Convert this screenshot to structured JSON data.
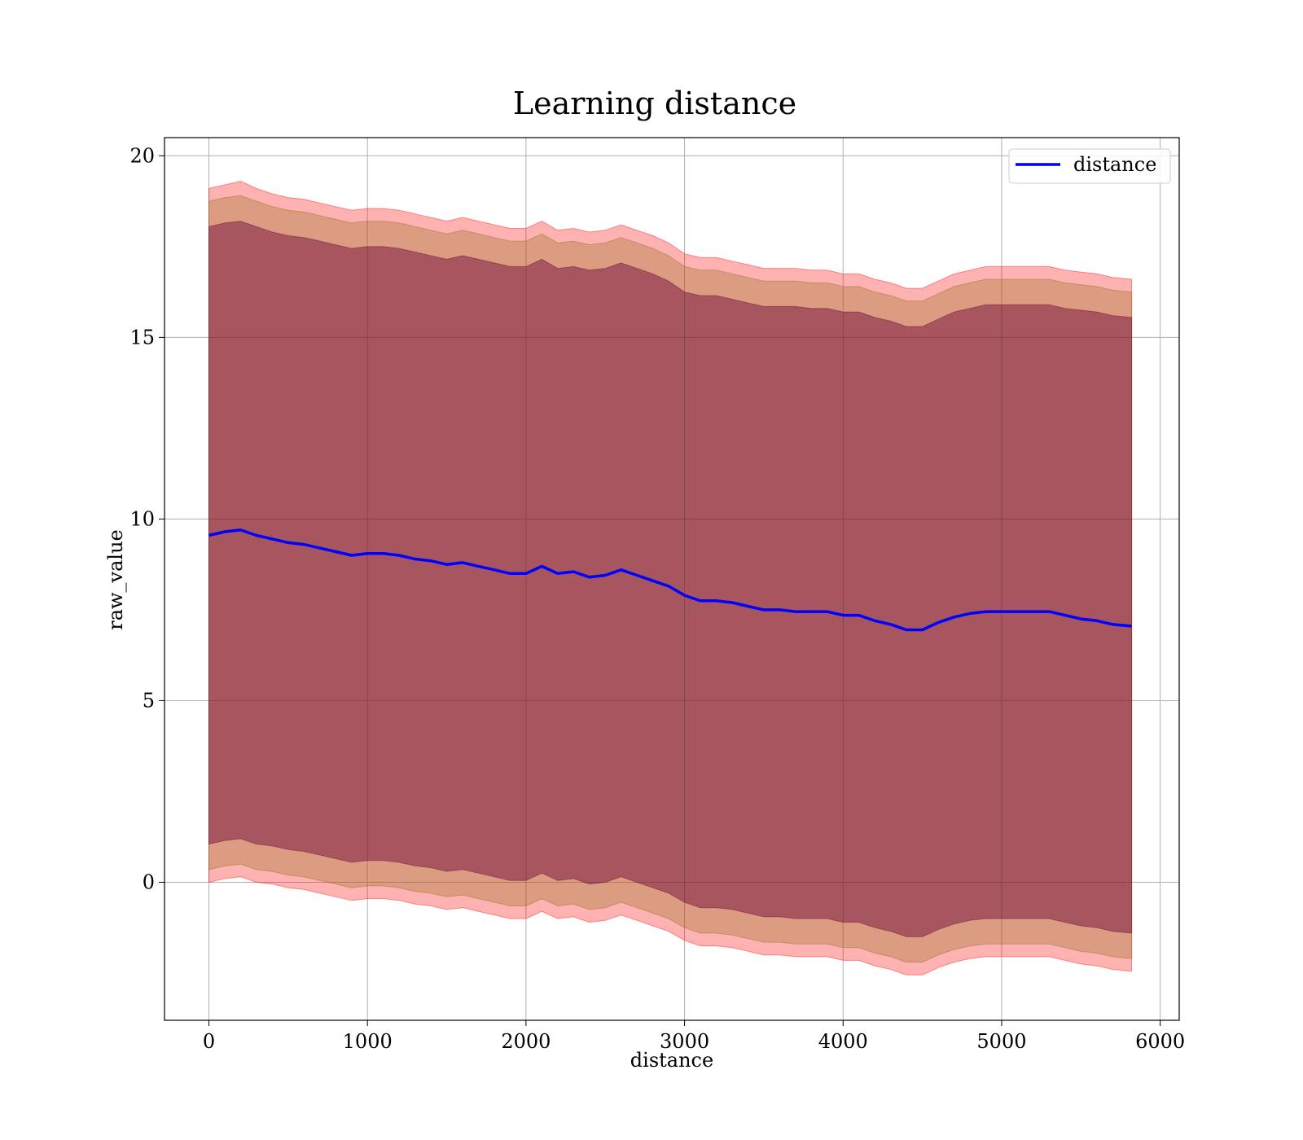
{
  "chart_data": {
    "type": "line",
    "title": "Learning distance",
    "xlabel": "distance",
    "ylabel": "raw_value",
    "xlim": [
      -280,
      6120
    ],
    "ylim": [
      -3.8,
      20.5
    ],
    "xticks": [
      0,
      1000,
      2000,
      3000,
      4000,
      5000,
      6000
    ],
    "yticks": [
      0,
      5,
      10,
      15,
      20
    ],
    "grid": true,
    "legend_position": "top-right",
    "x": [
      0,
      100,
      200,
      300,
      400,
      500,
      600,
      700,
      800,
      900,
      1000,
      1100,
      1200,
      1300,
      1400,
      1500,
      1600,
      1700,
      1800,
      1900,
      2000,
      2100,
      2200,
      2300,
      2400,
      2500,
      2600,
      2700,
      2800,
      2900,
      3000,
      3100,
      3200,
      3300,
      3400,
      3500,
      3600,
      3700,
      3800,
      3900,
      4000,
      4100,
      4200,
      4300,
      4400,
      4500,
      4600,
      4700,
      4800,
      4900,
      5000,
      5100,
      5200,
      5300,
      5400,
      5500,
      5600,
      5700,
      5820
    ],
    "series": [
      {
        "name": "distance",
        "color": "#0000ff",
        "values": [
          9.55,
          9.65,
          9.7,
          9.55,
          9.45,
          9.35,
          9.3,
          9.2,
          9.1,
          9.0,
          9.05,
          9.05,
          9.0,
          8.9,
          8.85,
          8.75,
          8.8,
          8.7,
          8.6,
          8.5,
          8.5,
          8.7,
          8.5,
          8.55,
          8.4,
          8.45,
          8.6,
          8.45,
          8.3,
          8.15,
          7.9,
          7.75,
          7.75,
          7.7,
          7.6,
          7.5,
          7.5,
          7.45,
          7.45,
          7.45,
          7.35,
          7.35,
          7.2,
          7.1,
          6.95,
          6.95,
          7.15,
          7.3,
          7.4,
          7.45,
          7.45,
          7.45,
          7.45,
          7.45,
          7.35,
          7.25,
          7.2,
          7.1,
          7.05
        ],
        "bands": [
          {
            "color": "#ff0000",
            "opacity": 0.3,
            "upper": [
              19.1,
              19.2,
              19.3,
              19.1,
              18.95,
              18.85,
              18.8,
              18.7,
              18.6,
              18.5,
              18.55,
              18.55,
              18.5,
              18.4,
              18.3,
              18.2,
              18.3,
              18.2,
              18.1,
              18.0,
              18.0,
              18.2,
              17.95,
              18.0,
              17.9,
              17.95,
              18.1,
              17.95,
              17.8,
              17.6,
              17.3,
              17.2,
              17.2,
              17.1,
              17.0,
              16.9,
              16.9,
              16.9,
              16.85,
              16.85,
              16.75,
              16.75,
              16.6,
              16.5,
              16.35,
              16.35,
              16.55,
              16.75,
              16.85,
              16.95,
              16.95,
              16.95,
              16.95,
              16.95,
              16.85,
              16.8,
              16.75,
              16.65,
              16.6
            ],
            "lower": [
              0.0,
              0.1,
              0.15,
              0.0,
              -0.05,
              -0.15,
              -0.2,
              -0.3,
              -0.4,
              -0.5,
              -0.45,
              -0.45,
              -0.5,
              -0.6,
              -0.65,
              -0.75,
              -0.7,
              -0.8,
              -0.9,
              -1.0,
              -1.0,
              -0.8,
              -1.0,
              -0.95,
              -1.1,
              -1.05,
              -0.9,
              -1.05,
              -1.2,
              -1.35,
              -1.6,
              -1.75,
              -1.75,
              -1.8,
              -1.9,
              -2.0,
              -2.0,
              -2.05,
              -2.05,
              -2.05,
              -2.15,
              -2.15,
              -2.3,
              -2.4,
              -2.55,
              -2.55,
              -2.35,
              -2.2,
              -2.1,
              -2.05,
              -2.05,
              -2.05,
              -2.05,
              -2.05,
              -2.15,
              -2.25,
              -2.3,
              -2.4,
              -2.45
            ]
          },
          {
            "color": "#8b6914",
            "opacity": 0.3,
            "upper": [
              18.75,
              18.85,
              18.9,
              18.75,
              18.6,
              18.5,
              18.45,
              18.35,
              18.25,
              18.15,
              18.2,
              18.2,
              18.15,
              18.05,
              17.95,
              17.85,
              17.95,
              17.85,
              17.75,
              17.65,
              17.65,
              17.85,
              17.6,
              17.65,
              17.55,
              17.6,
              17.75,
              17.6,
              17.45,
              17.25,
              16.95,
              16.85,
              16.85,
              16.75,
              16.65,
              16.55,
              16.55,
              16.55,
              16.5,
              16.5,
              16.4,
              16.4,
              16.25,
              16.15,
              16.0,
              16.0,
              16.2,
              16.4,
              16.5,
              16.6,
              16.6,
              16.6,
              16.6,
              16.6,
              16.5,
              16.45,
              16.4,
              16.3,
              16.25
            ],
            "lower": [
              0.35,
              0.45,
              0.5,
              0.35,
              0.3,
              0.2,
              0.15,
              0.05,
              -0.05,
              -0.15,
              -0.1,
              -0.1,
              -0.15,
              -0.25,
              -0.3,
              -0.4,
              -0.35,
              -0.45,
              -0.55,
              -0.65,
              -0.65,
              -0.45,
              -0.65,
              -0.6,
              -0.75,
              -0.7,
              -0.55,
              -0.7,
              -0.85,
              -1.0,
              -1.25,
              -1.4,
              -1.4,
              -1.45,
              -1.55,
              -1.65,
              -1.65,
              -1.7,
              -1.7,
              -1.7,
              -1.8,
              -1.8,
              -1.95,
              -2.05,
              -2.2,
              -2.2,
              -2.0,
              -1.85,
              -1.75,
              -1.7,
              -1.7,
              -1.7,
              -1.7,
              -1.7,
              -1.8,
              -1.9,
              -1.95,
              -2.05,
              -2.1
            ]
          },
          {
            "color": "#660033",
            "opacity": 0.45,
            "upper": [
              18.05,
              18.15,
              18.2,
              18.05,
              17.9,
              17.8,
              17.75,
              17.65,
              17.55,
              17.45,
              17.5,
              17.5,
              17.45,
              17.35,
              17.25,
              17.15,
              17.25,
              17.15,
              17.05,
              16.95,
              16.95,
              17.15,
              16.9,
              16.95,
              16.85,
              16.9,
              17.05,
              16.9,
              16.75,
              16.55,
              16.25,
              16.15,
              16.15,
              16.05,
              15.95,
              15.85,
              15.85,
              15.85,
              15.8,
              15.8,
              15.7,
              15.7,
              15.55,
              15.45,
              15.3,
              15.3,
              15.5,
              15.7,
              15.8,
              15.9,
              15.9,
              15.9,
              15.9,
              15.9,
              15.8,
              15.75,
              15.7,
              15.6,
              15.55
            ],
            "lower": [
              1.05,
              1.15,
              1.2,
              1.05,
              1.0,
              0.9,
              0.85,
              0.75,
              0.65,
              0.55,
              0.6,
              0.6,
              0.55,
              0.45,
              0.4,
              0.3,
              0.35,
              0.25,
              0.15,
              0.05,
              0.05,
              0.25,
              0.05,
              0.1,
              -0.05,
              0.0,
              0.15,
              0.0,
              -0.15,
              -0.3,
              -0.55,
              -0.7,
              -0.7,
              -0.75,
              -0.85,
              -0.95,
              -0.95,
              -1.0,
              -1.0,
              -1.0,
              -1.1,
              -1.1,
              -1.25,
              -1.35,
              -1.5,
              -1.5,
              -1.3,
              -1.15,
              -1.05,
              -1.0,
              -1.0,
              -1.0,
              -1.0,
              -1.0,
              -1.1,
              -1.2,
              -1.25,
              -1.35,
              -1.4
            ]
          }
        ]
      }
    ]
  }
}
